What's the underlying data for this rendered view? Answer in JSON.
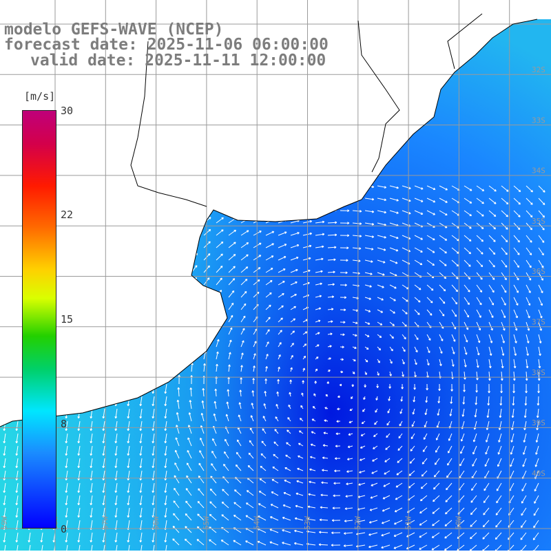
{
  "title": {
    "line1": "modelo GEFS-WAVE (NCEP)",
    "line2": "forecast date: 2025-11-06 06:00:00",
    "line3": "valid date: 2025-11-11 12:00:00"
  },
  "colorbar": {
    "unit": "[m/s]",
    "ticks": [
      "30",
      "22",
      "15",
      "8",
      "0"
    ],
    "colors": [
      "#0000ff",
      "#1a8cff",
      "#00e6ff",
      "#00d06a",
      "#ffd000",
      "#ff1a00",
      "#bf007a"
    ]
  },
  "map": {
    "variable": "wind speed with direction vectors",
    "sea_color_low": "#0033ee",
    "sea_color_mid": "#1e88ff",
    "sea_color_high": "#26d6e6",
    "land_color": "#ffffff",
    "grid": true,
    "right_edge_labels": [
      "32S",
      "33S",
      "34S",
      "35S",
      "36S",
      "37S",
      "38S",
      "39S",
      "40S"
    ],
    "bottom_labels": [
      "59W",
      "58W",
      "57W",
      "56W",
      "55W",
      "54W",
      "53W",
      "52W",
      "51W",
      "50W"
    ]
  }
}
